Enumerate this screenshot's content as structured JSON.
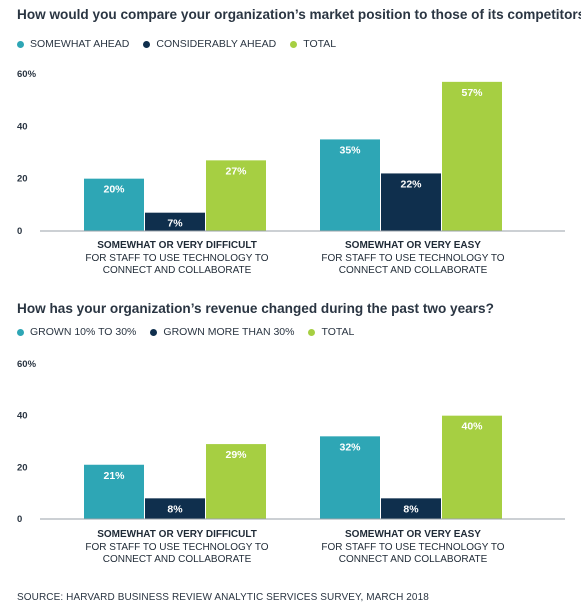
{
  "colors": {
    "teal": "#2ea6b5",
    "navy": "#0f2f4d",
    "green": "#a6cf42",
    "axis": "#9aa1a8"
  },
  "chart_data": [
    {
      "type": "bar",
      "title": "How would you compare your organization’s market position to those of its competitors?",
      "legend": [
        "SOMEWHAT AHEAD",
        "CONSIDERABLY AHEAD",
        "TOTAL"
      ],
      "ylim": [
        0,
        60
      ],
      "yticks": [
        "60%",
        "40",
        "20",
        "0"
      ],
      "categories": [
        {
          "bold": "SOMEWHAT OR VERY DIFFICULT",
          "lines": [
            "FOR STAFF TO USE TECHNOLOGY TO",
            "CONNECT AND COLLABORATE"
          ]
        },
        {
          "bold": "SOMEWHAT OR VERY EASY",
          "lines": [
            "FOR STAFF TO USE TECHNOLOGY TO",
            "CONNECT AND COLLABORATE"
          ]
        }
      ],
      "series": [
        {
          "name": "SOMEWHAT AHEAD",
          "values": [
            20,
            35
          ],
          "labels": [
            "20%",
            "35%"
          ]
        },
        {
          "name": "CONSIDERABLY AHEAD",
          "values": [
            7,
            22
          ],
          "labels": [
            "7%",
            "22%"
          ]
        },
        {
          "name": "TOTAL",
          "values": [
            27,
            57
          ],
          "labels": [
            "27%",
            "57%"
          ]
        }
      ]
    },
    {
      "type": "bar",
      "title": "How has your organization’s revenue changed during the past two years?",
      "legend": [
        "GROWN 10% TO 30%",
        "GROWN MORE THAN 30%",
        "TOTAL"
      ],
      "ylim": [
        0,
        60
      ],
      "yticks": [
        "60%",
        "40",
        "20",
        "0"
      ],
      "categories": [
        {
          "bold": "SOMEWHAT OR VERY DIFFICULT",
          "lines": [
            "FOR STAFF TO USE TECHNOLOGY TO",
            "CONNECT AND COLLABORATE"
          ]
        },
        {
          "bold": "SOMEWHAT OR VERY EASY",
          "lines": [
            "FOR STAFF TO USE TECHNOLOGY TO",
            "CONNECT AND COLLABORATE"
          ]
        }
      ],
      "series": [
        {
          "name": "GROWN 10% TO 30%",
          "values": [
            21,
            32
          ],
          "labels": [
            "21%",
            "32%"
          ]
        },
        {
          "name": "GROWN MORE THAN 30%",
          "values": [
            8,
            8
          ],
          "labels": [
            "8%",
            "8%"
          ]
        },
        {
          "name": "TOTAL",
          "values": [
            29,
            40
          ],
          "labels": [
            "29%",
            "40%"
          ]
        }
      ]
    }
  ],
  "source": "SOURCE: HARVARD BUSINESS REVIEW ANALYTIC SERVICES SURVEY, MARCH 2018"
}
